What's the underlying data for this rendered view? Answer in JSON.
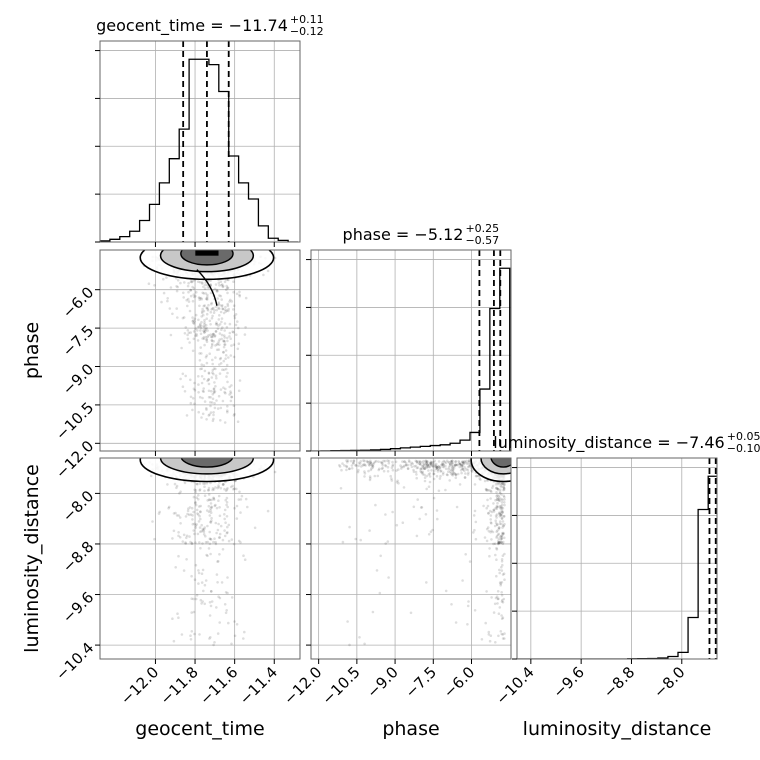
{
  "chart_data": {
    "type": "corner",
    "params": [
      "geocent_time",
      "phase",
      "luminosity_distance"
    ],
    "axis_labels": {
      "geocent_time": "geocent_time",
      "phase": "phase",
      "luminosity_distance": "luminosity_distance"
    },
    "ranges": {
      "geocent_time": [
        -12.28,
        -11.27
      ],
      "phase": [
        -12.3,
        -4.45
      ],
      "luminosity_distance": [
        -10.62,
        -7.44
      ]
    },
    "ticks": {
      "geocent_time": [
        -12.0,
        -11.8,
        -11.6,
        -11.4
      ],
      "phase": [
        -12.0,
        -10.5,
        -9.0,
        -7.5,
        -6.0
      ],
      "luminosity_distance": [
        -10.4,
        -9.6,
        -8.8,
        -8.0
      ]
    },
    "tick_labels": {
      "geocent_time": [
        "−12.0",
        "−11.8",
        "−11.6",
        "−11.4"
      ],
      "phase": [
        "−12.0",
        "−10.5",
        "−9.0",
        "−7.5",
        "−6.0"
      ],
      "luminosity_distance": [
        "−10.4",
        "−9.6",
        "−8.8",
        "−8.0"
      ]
    },
    "diag_titles": {
      "geocent_time": {
        "base": "geocent_time = −11.74",
        "plus": "+0.11",
        "minus": "−0.12"
      },
      "phase": {
        "base": "phase = −5.12",
        "plus": "+0.25",
        "minus": "−0.57"
      },
      "luminosity_distance": {
        "base": "luminosity_distance = −7.46",
        "plus": "+0.05",
        "minus": "−0.10"
      }
    },
    "quantiles": {
      "geocent_time": [
        -11.86,
        -11.74,
        -11.63
      ],
      "phase": [
        -5.69,
        -5.12,
        -4.87
      ],
      "luminosity_distance": [
        -7.56,
        -7.46,
        -7.41
      ]
    },
    "histograms": {
      "geocent_time": {
        "edges": [
          -12.28,
          -12.23,
          -12.18,
          -12.13,
          -12.08,
          -12.03,
          -11.98,
          -11.93,
          -11.88,
          -11.83,
          -11.78,
          -11.73,
          -11.68,
          -11.63,
          -11.58,
          -11.53,
          -11.48,
          -11.43,
          -11.38,
          -11.33,
          -11.28
        ],
        "counts": [
          0.2,
          0.5,
          1.0,
          2.0,
          4.0,
          7.0,
          11.0,
          15.5,
          21.0,
          34.0,
          34.0,
          33.0,
          28.0,
          16.0,
          11.0,
          8.0,
          3.0,
          0.7,
          0.3,
          0.0
        ]
      },
      "phase": {
        "edges": [
          -12.3,
          -11.91,
          -11.52,
          -11.13,
          -10.74,
          -10.35,
          -9.96,
          -9.57,
          -9.18,
          -8.79,
          -8.4,
          -8.01,
          -7.62,
          -7.23,
          -6.84,
          -6.45,
          -6.06,
          -5.67,
          -5.28,
          -4.89,
          -4.5
        ],
        "counts": [
          0.0,
          0.1,
          0.2,
          0.3,
          0.4,
          0.5,
          0.7,
          1.0,
          1.5,
          2.0,
          2.5,
          3.0,
          3.5,
          4.0,
          5.0,
          7.0,
          12.0,
          40.0,
          92.0,
          118.0
        ]
      },
      "luminosity_distance": {
        "edges": [
          -10.62,
          -10.46,
          -10.3,
          -10.14,
          -9.98,
          -9.82,
          -9.66,
          -9.5,
          -9.34,
          -9.18,
          -9.02,
          -8.86,
          -8.7,
          -8.54,
          -8.38,
          -8.22,
          -8.06,
          -7.9,
          -7.74,
          -7.58,
          -7.42
        ],
        "counts": [
          0.0,
          0.0,
          0.0,
          0.0,
          0.0,
          0.0,
          0.0,
          0.0,
          0.0,
          0.0,
          0.0,
          0.1,
          0.2,
          0.3,
          0.6,
          1.5,
          4.0,
          25.0,
          90.0,
          110.0
        ]
      }
    }
  }
}
